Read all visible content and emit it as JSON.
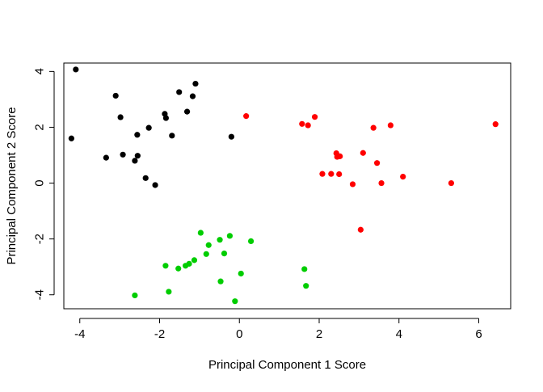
{
  "chart_data": {
    "type": "scatter",
    "title": "",
    "xlabel": "Principal Component 1 Score",
    "ylabel": "Principal Component 2 Score",
    "xlim": [
      -4.4,
      6.8
    ],
    "ylim": [
      -4.5,
      4.3
    ],
    "x_ticks": [
      {
        "value": -4,
        "label": "-4"
      },
      {
        "value": -2,
        "label": "-2"
      },
      {
        "value": 0,
        "label": "0"
      },
      {
        "value": 2,
        "label": "2"
      },
      {
        "value": 4,
        "label": "4"
      },
      {
        "value": 6,
        "label": "6"
      }
    ],
    "y_ticks": [
      {
        "value": -4,
        "label": "-4"
      },
      {
        "value": -2,
        "label": "-2"
      },
      {
        "value": 0,
        "label": "0"
      },
      {
        "value": 2,
        "label": "2"
      },
      {
        "value": 4,
        "label": "4"
      }
    ],
    "grid": false,
    "legend": "none",
    "series": [
      {
        "color": "#000000",
        "points": [
          [
            -4.1,
            4.07
          ],
          [
            -4.21,
            1.6
          ],
          [
            -3.1,
            3.13
          ],
          [
            -2.98,
            2.36
          ],
          [
            -3.34,
            0.91
          ],
          [
            -2.92,
            1.02
          ],
          [
            -2.56,
            1.73
          ],
          [
            -2.27,
            1.98
          ],
          [
            -2.55,
            0.98
          ],
          [
            -2.62,
            0.8
          ],
          [
            -2.35,
            0.18
          ],
          [
            -2.11,
            -0.07
          ],
          [
            -1.87,
            2.48
          ],
          [
            -1.84,
            2.33
          ],
          [
            -1.69,
            1.7
          ],
          [
            -1.51,
            3.26
          ],
          [
            -1.31,
            2.56
          ],
          [
            -1.17,
            3.11
          ],
          [
            -1.1,
            3.56
          ],
          [
            -0.2,
            1.66
          ]
        ]
      },
      {
        "color": "#ff0000",
        "points": [
          [
            0.17,
            2.4
          ],
          [
            1.57,
            2.12
          ],
          [
            1.72,
            2.07
          ],
          [
            1.89,
            2.37
          ],
          [
            2.08,
            0.33
          ],
          [
            2.3,
            0.33
          ],
          [
            2.43,
            1.07
          ],
          [
            2.45,
            0.94
          ],
          [
            2.52,
            0.96
          ],
          [
            2.5,
            0.32
          ],
          [
            2.84,
            -0.04
          ],
          [
            3.04,
            -1.67
          ],
          [
            3.1,
            1.08
          ],
          [
            3.36,
            1.98
          ],
          [
            3.45,
            0.72
          ],
          [
            3.56,
            0.0
          ],
          [
            3.79,
            2.07
          ],
          [
            4.1,
            0.23
          ],
          [
            5.31,
            0.0
          ],
          [
            6.42,
            2.11
          ]
        ]
      },
      {
        "color": "#00cd00",
        "points": [
          [
            -2.62,
            -4.02
          ],
          [
            -1.85,
            -2.96
          ],
          [
            -1.77,
            -3.89
          ],
          [
            -1.53,
            -3.06
          ],
          [
            -1.35,
            -2.96
          ],
          [
            -1.26,
            -2.89
          ],
          [
            -1.13,
            -2.76
          ],
          [
            -0.97,
            -1.78
          ],
          [
            -0.83,
            -2.54
          ],
          [
            -0.77,
            -2.22
          ],
          [
            -0.49,
            -2.03
          ],
          [
            -0.47,
            -3.52
          ],
          [
            -0.38,
            -2.52
          ],
          [
            -0.24,
            -1.89
          ],
          [
            -0.11,
            -4.23
          ],
          [
            0.04,
            -3.24
          ],
          [
            0.29,
            -2.08
          ],
          [
            1.63,
            -3.08
          ],
          [
            1.67,
            -3.68
          ]
        ]
      }
    ]
  }
}
